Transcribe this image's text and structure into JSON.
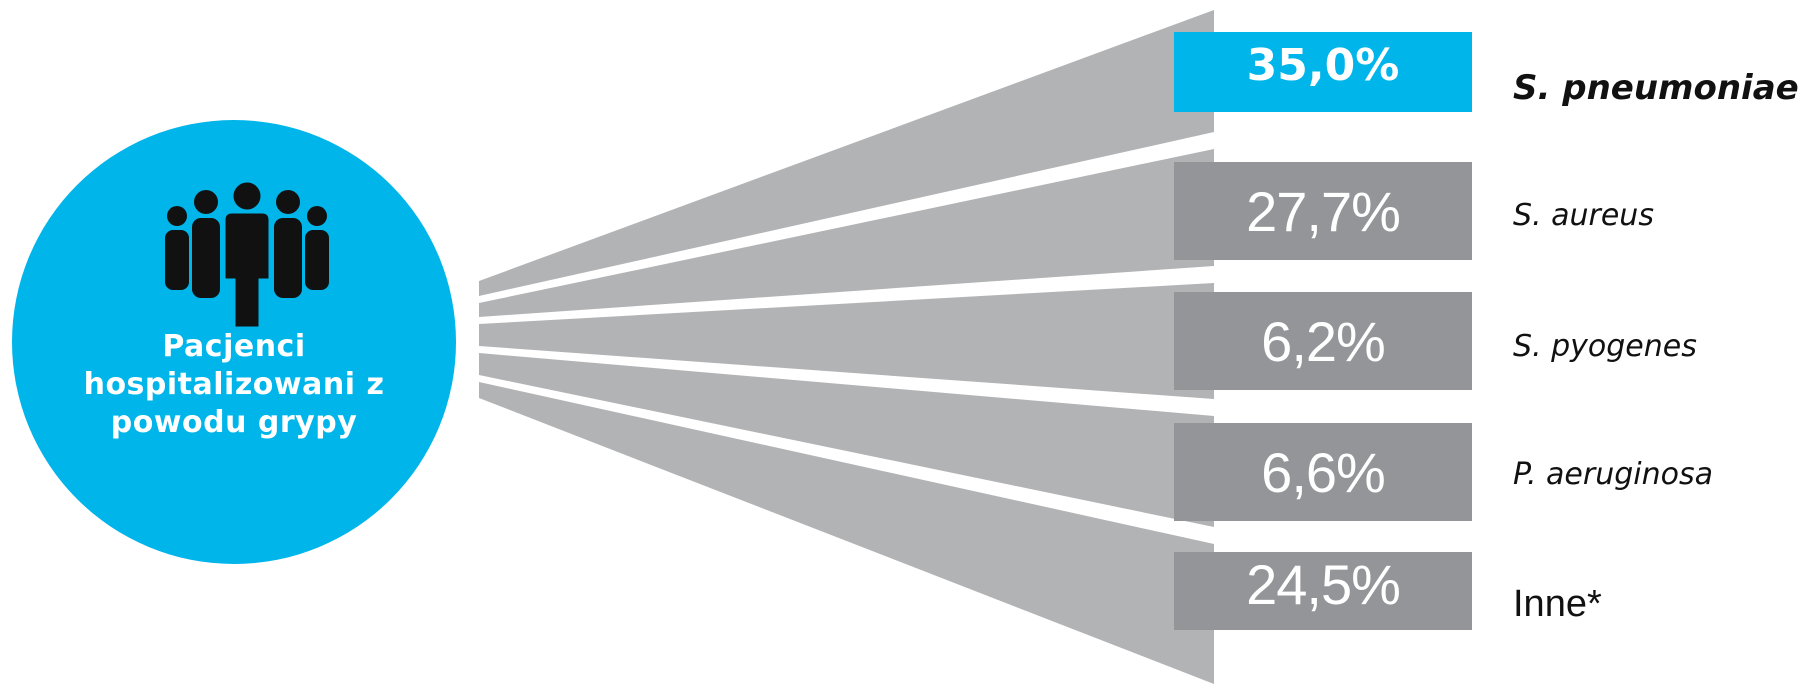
{
  "diagram": {
    "circle": {
      "label_lines": [
        "Pacjenci",
        "hospitalizowani z",
        "powodu grypy"
      ],
      "icon": "people-group-icon",
      "color": "#00b5ea"
    },
    "fan_color": "#b2b3b5",
    "box_color": "#939598",
    "highlight_color": "#00b5ea",
    "rows": [
      {
        "value": "35,0%",
        "label": "S. pneumoniae"
      },
      {
        "value": "27,7%",
        "label": "S. aureus"
      },
      {
        "value": "6,2%",
        "label": "S. pyogenes"
      },
      {
        "value": "6,6%",
        "label": "P. aeruginosa"
      },
      {
        "value": "24,5%",
        "label": "Inne*"
      }
    ]
  }
}
